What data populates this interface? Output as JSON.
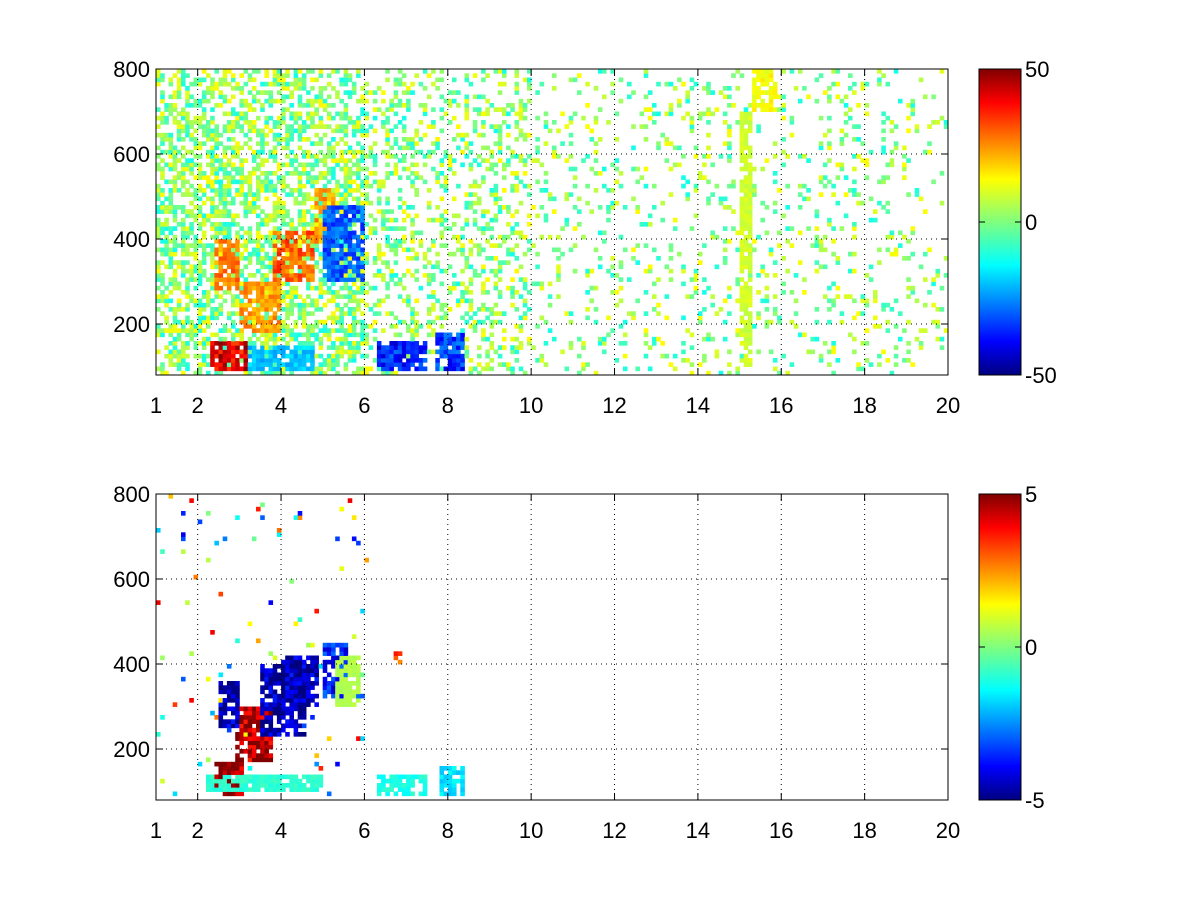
{
  "chart_data": [
    {
      "type": "heatmap",
      "title": "",
      "xlabel": "",
      "ylabel": "",
      "xlim": [
        1,
        20
      ],
      "ylim": [
        80,
        800
      ],
      "x_ticks": [
        1,
        2,
        4,
        6,
        8,
        10,
        12,
        14,
        16,
        18,
        20
      ],
      "y_ticks": [
        200,
        400,
        600,
        800
      ],
      "grid": true,
      "colormap": "jet",
      "colorbar": {
        "min": -50,
        "max": 50,
        "tick_labels": [
          "50",
          "0",
          "-50"
        ]
      },
      "features": [
        {
          "x": [
            2.3,
            3.2
          ],
          "y": [
            90,
            160
          ],
          "value": 40
        },
        {
          "x": [
            2.4,
            3.0
          ],
          "y": [
            280,
            400
          ],
          "value": 25
        },
        {
          "x": [
            3.0,
            4.0
          ],
          "y": [
            180,
            300
          ],
          "value": 22
        },
        {
          "x": [
            3.8,
            4.8
          ],
          "y": [
            300,
            420
          ],
          "value": 28
        },
        {
          "x": [
            4.8,
            5.3
          ],
          "y": [
            380,
            520
          ],
          "value": 22
        },
        {
          "x": [
            5.0,
            6.0
          ],
          "y": [
            300,
            480
          ],
          "value": -28
        },
        {
          "x": [
            3.2,
            4.8
          ],
          "y": [
            90,
            150
          ],
          "value": -18
        },
        {
          "x": [
            6.3,
            7.5
          ],
          "y": [
            90,
            160
          ],
          "value": -35
        },
        {
          "x": [
            7.7,
            8.4
          ],
          "y": [
            90,
            180
          ],
          "value": -32
        },
        {
          "x": [
            15.0,
            15.3
          ],
          "y": [
            100,
            700
          ],
          "value": 8
        },
        {
          "x": [
            15.3,
            15.9
          ],
          "y": [
            700,
            800
          ],
          "value": 12
        }
      ]
    },
    {
      "type": "heatmap",
      "title": "",
      "xlabel": "",
      "ylabel": "",
      "xlim": [
        1,
        20
      ],
      "ylim": [
        80,
        800
      ],
      "x_ticks": [
        1,
        2,
        4,
        6,
        8,
        10,
        12,
        14,
        16,
        18,
        20
      ],
      "y_ticks": [
        200,
        400,
        600,
        800
      ],
      "grid": true,
      "colormap": "jet",
      "colorbar": {
        "min": -5,
        "max": 5,
        "tick_labels": [
          "5",
          "0",
          "-5"
        ]
      },
      "features": [
        {
          "x": [
            2.4,
            3.1
          ],
          "y": [
            90,
            170
          ],
          "value": 4.8
        },
        {
          "x": [
            2.9,
            3.8
          ],
          "y": [
            170,
            300
          ],
          "value": 4.5
        },
        {
          "x": [
            2.5,
            3.0
          ],
          "y": [
            250,
            360
          ],
          "value": -4.6
        },
        {
          "x": [
            3.5,
            4.6
          ],
          "y": [
            230,
            400
          ],
          "value": -4.7
        },
        {
          "x": [
            4.0,
            4.9
          ],
          "y": [
            300,
            420
          ],
          "value": -4.5
        },
        {
          "x": [
            5.0,
            5.6
          ],
          "y": [
            320,
            450
          ],
          "value": -3.5
        },
        {
          "x": [
            5.3,
            5.9
          ],
          "y": [
            300,
            420
          ],
          "value": 0.5
        },
        {
          "x": [
            2.2,
            5.0
          ],
          "y": [
            100,
            140
          ],
          "value": -0.8
        },
        {
          "x": [
            6.3,
            7.5
          ],
          "y": [
            95,
            140
          ],
          "value": -1.0
        },
        {
          "x": [
            7.8,
            8.4
          ],
          "y": [
            95,
            160
          ],
          "value": -1.5
        },
        {
          "x": [
            6.7,
            6.9
          ],
          "y": [
            400,
            430
          ],
          "value": 3.0
        }
      ]
    }
  ]
}
